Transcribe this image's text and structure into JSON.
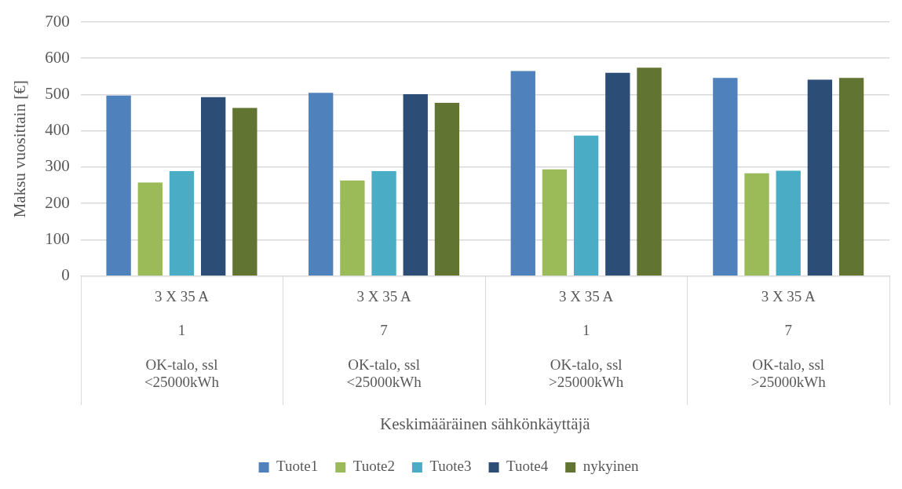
{
  "chart_data": {
    "type": "bar",
    "xlabel": "Keskimääräinen sähkönkäyttäjä",
    "ylabel": "Maksu vuosittain [€]",
    "categories": [
      "3 X 35 A\n1\nOK-talo, ssl <25000kWh",
      "3 X 35 A\n7\nOK-talo, ssl <25000kWh",
      "3 X 35 A\n1\nOK-talo, ssl >25000kWh",
      "3 X 35 A\n7\nOK-talo, ssl >25000kWh"
    ],
    "series": [
      {
        "name": "Tuote1",
        "color": "#4f81bd",
        "values": [
          497,
          505,
          565,
          546
        ]
      },
      {
        "name": "Tuote2",
        "color": "#9bbb59",
        "values": [
          258,
          263,
          294,
          283
        ]
      },
      {
        "name": "Tuote3",
        "color": "#4bacc6",
        "values": [
          289,
          289,
          387,
          290
        ]
      },
      {
        "name": "Tuote4",
        "color": "#2c4d75",
        "values": [
          493,
          501,
          560,
          541
        ]
      },
      {
        "name": "nykyinen",
        "color": "#627432",
        "values": [
          463,
          477,
          574,
          546
        ]
      }
    ],
    "ylim": [
      0,
      700
    ],
    "yticks": [
      0,
      100,
      200,
      300,
      400,
      500,
      600,
      700
    ],
    "grid": "y",
    "legend": "bottom"
  }
}
